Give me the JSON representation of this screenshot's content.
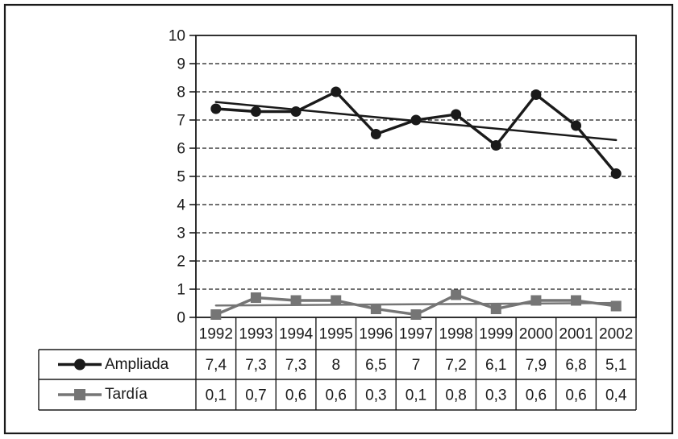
{
  "figure": {
    "background": "#ffffff",
    "frame_border_color": "#1a1a1a",
    "grid_line_color": "#1a1a1a",
    "text_color": "#1a1a1a"
  },
  "chart_data": {
    "type": "line",
    "title": "",
    "xlabel": "",
    "ylabel": "",
    "categories": [
      "1992",
      "1993",
      "1994",
      "1995",
      "1996",
      "1997",
      "1998",
      "1999",
      "2000",
      "2001",
      "2002"
    ],
    "series": [
      {
        "name": "Ampliada",
        "values": [
          7.4,
          7.3,
          7.3,
          8,
          6.5,
          7,
          7.2,
          6.1,
          7.9,
          6.8,
          5.1
        ],
        "display_values": [
          "7,4",
          "7,3",
          "7,3",
          "8",
          "6,5",
          "7",
          "7,2",
          "6,1",
          "7,9",
          "6,8",
          "5,1"
        ],
        "color": "#1a1a1a",
        "marker": "circle",
        "trendline": {
          "start_value": 7.64,
          "end_value": 6.29
        }
      },
      {
        "name": "Tardía",
        "values": [
          0.1,
          0.7,
          0.6,
          0.6,
          0.3,
          0.1,
          0.8,
          0.3,
          0.6,
          0.6,
          0.4
        ],
        "display_values": [
          "0,1",
          "0,7",
          "0,6",
          "0,6",
          "0,3",
          "0,1",
          "0,8",
          "0,3",
          "0,6",
          "0,6",
          "0,4"
        ],
        "color": "#757575",
        "marker": "square",
        "trendline": {
          "start_value": 0.42,
          "end_value": 0.51
        }
      }
    ],
    "y_axis": {
      "min": 0,
      "max": 10,
      "tick_step": 1,
      "tick_labels": [
        "0",
        "1",
        "2",
        "3",
        "4",
        "5",
        "6",
        "7",
        "8",
        "9",
        "10"
      ]
    },
    "grid": "horizontal-dashed",
    "legend_position": "table-left",
    "data_table_shown": true
  }
}
